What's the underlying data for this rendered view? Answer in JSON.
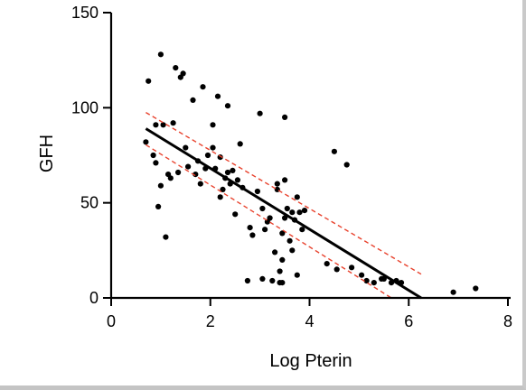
{
  "chart_data": {
    "type": "scatter",
    "title": "",
    "xlabel": "Log Pterin",
    "ylabel": "GFH",
    "xlim": [
      0,
      8
    ],
    "ylim": [
      0,
      150
    ],
    "x_ticks": [
      "0",
      "2",
      "4",
      "6",
      "8"
    ],
    "y_ticks": [
      "0",
      "50",
      "100",
      "150"
    ],
    "grid": false,
    "legend": "none",
    "points": [
      [
        0.7,
        82
      ],
      [
        0.75,
        114
      ],
      [
        0.85,
        75
      ],
      [
        0.9,
        71
      ],
      [
        0.9,
        91
      ],
      [
        0.95,
        48
      ],
      [
        1.0,
        59
      ],
      [
        1.0,
        128
      ],
      [
        1.05,
        91
      ],
      [
        1.1,
        32
      ],
      [
        1.15,
        65
      ],
      [
        1.2,
        63
      ],
      [
        1.25,
        92
      ],
      [
        1.3,
        121
      ],
      [
        1.35,
        66
      ],
      [
        1.4,
        116
      ],
      [
        1.45,
        118
      ],
      [
        1.5,
        79
      ],
      [
        1.55,
        69
      ],
      [
        1.65,
        104
      ],
      [
        1.7,
        65
      ],
      [
        1.75,
        72
      ],
      [
        1.8,
        60
      ],
      [
        1.85,
        111
      ],
      [
        1.9,
        68
      ],
      [
        1.95,
        75
      ],
      [
        2.05,
        79
      ],
      [
        2.05,
        91
      ],
      [
        2.1,
        68
      ],
      [
        2.15,
        106
      ],
      [
        2.2,
        53
      ],
      [
        2.2,
        74
      ],
      [
        2.25,
        57
      ],
      [
        2.3,
        63
      ],
      [
        2.35,
        66
      ],
      [
        2.35,
        101
      ],
      [
        2.4,
        60
      ],
      [
        2.45,
        67
      ],
      [
        2.5,
        44
      ],
      [
        2.55,
        62
      ],
      [
        2.6,
        81
      ],
      [
        2.65,
        58
      ],
      [
        2.75,
        9
      ],
      [
        2.8,
        37
      ],
      [
        2.85,
        33
      ],
      [
        2.95,
        56
      ],
      [
        3.0,
        97
      ],
      [
        3.05,
        10
      ],
      [
        3.05,
        47
      ],
      [
        3.1,
        36
      ],
      [
        3.15,
        40
      ],
      [
        3.2,
        42
      ],
      [
        3.25,
        9
      ],
      [
        3.3,
        24
      ],
      [
        3.35,
        57
      ],
      [
        3.35,
        60
      ],
      [
        3.4,
        14
      ],
      [
        3.4,
        8
      ],
      [
        3.45,
        20
      ],
      [
        3.45,
        34
      ],
      [
        3.45,
        8
      ],
      [
        3.5,
        42
      ],
      [
        3.5,
        62
      ],
      [
        3.5,
        95
      ],
      [
        3.55,
        47
      ],
      [
        3.6,
        30
      ],
      [
        3.65,
        45
      ],
      [
        3.65,
        25
      ],
      [
        3.7,
        41
      ],
      [
        3.75,
        12
      ],
      [
        3.75,
        53
      ],
      [
        3.8,
        45
      ],
      [
        3.85,
        36
      ],
      [
        3.9,
        46
      ],
      [
        4.35,
        18
      ],
      [
        4.5,
        77
      ],
      [
        4.55,
        15
      ],
      [
        4.75,
        70
      ],
      [
        4.85,
        16
      ],
      [
        5.05,
        12
      ],
      [
        5.15,
        9
      ],
      [
        5.3,
        8
      ],
      [
        5.45,
        10
      ],
      [
        5.5,
        10
      ],
      [
        5.65,
        8
      ],
      [
        5.75,
        9
      ],
      [
        5.85,
        8
      ],
      [
        6.9,
        3
      ],
      [
        7.35,
        5
      ]
    ],
    "fit_line": {
      "x": [
        0.7,
        6.25
      ],
      "y": [
        89,
        0
      ],
      "color": "#000000"
    },
    "confidence_band": {
      "color": "#e8412c",
      "upper": {
        "x": [
          0.7,
          6.25
        ],
        "y": [
          97.5,
          12.5
        ]
      },
      "lower": {
        "x": [
          0.7,
          5.65
        ],
        "y": [
          80.5,
          0
        ]
      }
    },
    "marker_color": "#000000"
  }
}
